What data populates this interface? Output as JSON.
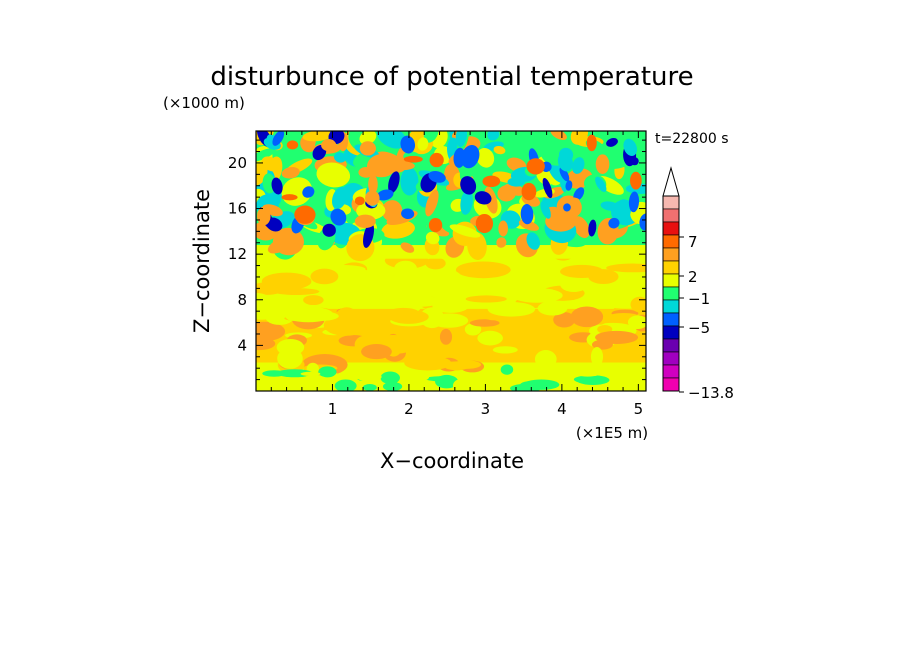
{
  "chart_data": {
    "type": "heatmap",
    "title": "disturbunce of potential temperature",
    "z_scale_label": "(×1000 m)",
    "x_scale_label": "(×1E5 m)",
    "xlabel": "X−coordinate",
    "ylabel": "Z−coordinate",
    "time_label": "t=22800 s",
    "x_ticks": [
      "1",
      "2",
      "3",
      "4",
      "5"
    ],
    "y_ticks": [
      "4",
      "8",
      "12",
      "16",
      "20"
    ],
    "xlim": [
      0,
      5.1
    ],
    "ylim": [
      0,
      22.8
    ],
    "colorbar": {
      "labels": [
        "7",
        "2",
        "−1",
        "−5",
        "−13.8"
      ],
      "extend": "max",
      "colors_top_to_bottom": [
        "#f6b8b0",
        "#f07070",
        "#e81010",
        "#ff6a00",
        "#ffa020",
        "#ffd200",
        "#e8ff00",
        "#20ff70",
        "#00d8d8",
        "#0060ff",
        "#0000c0",
        "#6a00b0",
        "#a000c0",
        "#d000c0",
        "#f000b0"
      ]
    },
    "regions": [
      {
        "zone": "upper",
        "z_range": [
          12,
          22.8
        ],
        "description_values": [
          -5,
          7
        ]
      },
      {
        "zone": "lower",
        "z_range": [
          0,
          12
        ],
        "description_values": [
          0,
          2
        ]
      }
    ]
  }
}
